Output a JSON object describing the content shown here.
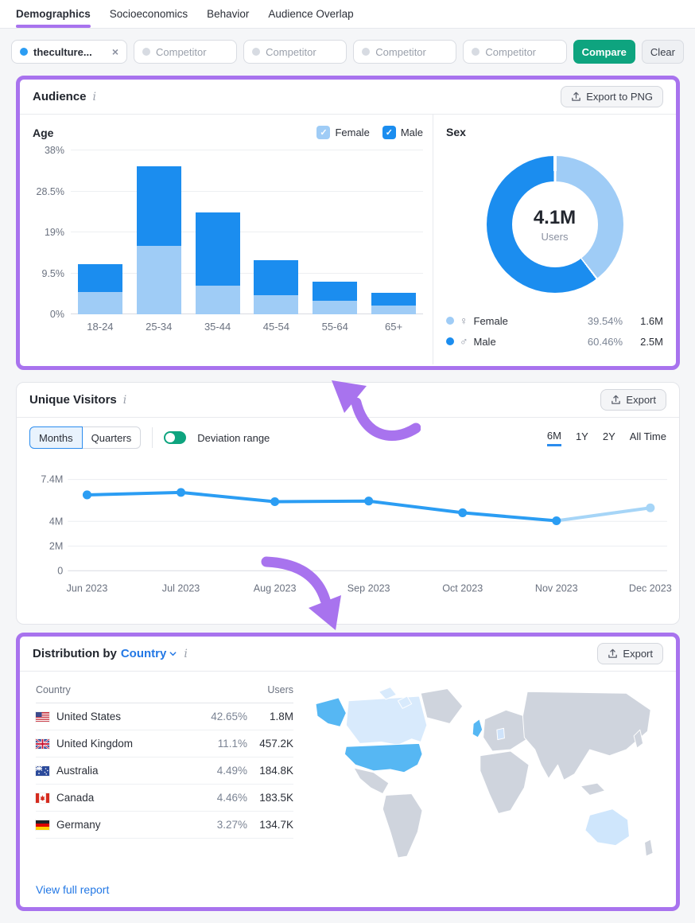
{
  "tabs": {
    "items": [
      {
        "label": "Demographics",
        "active": true
      },
      {
        "label": "Socioeconomics",
        "active": false
      },
      {
        "label": "Behavior",
        "active": false
      },
      {
        "label": "Audience Overlap",
        "active": false
      }
    ]
  },
  "filters": {
    "main_chip": {
      "label": "theculture...",
      "close_label": "×"
    },
    "competitor_placeholder": "Competitor",
    "compare_label": "Compare",
    "clear_label": "Clear"
  },
  "audience": {
    "title": "Audience",
    "info_icon_char": "i",
    "export_label": "Export to PNG"
  },
  "unique_visitors_section": {
    "title": "Unique Visitors",
    "info_icon_char": "i",
    "export_label": "Export",
    "granularity": [
      {
        "label": "Months",
        "active": true
      },
      {
        "label": "Quarters",
        "active": false
      }
    ],
    "toggle_label": "Deviation range",
    "toggle_on": true,
    "ranges": [
      {
        "label": "6M",
        "active": true
      },
      {
        "label": "1Y",
        "active": false
      },
      {
        "label": "2Y",
        "active": false
      },
      {
        "label": "All Time",
        "active": false
      }
    ]
  },
  "distribution": {
    "title_prefix": "Distribution by",
    "selector_label": "Country",
    "info_icon_char": "i",
    "export_label": "Export",
    "table": {
      "col_country": "Country",
      "col_users": "Users",
      "rows": [
        {
          "country": "United States",
          "flag": "us",
          "percent": "42.65%",
          "users": "1.8M"
        },
        {
          "country": "United Kingdom",
          "flag": "gb",
          "percent": "11.1%",
          "users": "457.2K"
        },
        {
          "country": "Australia",
          "flag": "au",
          "percent": "4.49%",
          "users": "184.8K"
        },
        {
          "country": "Canada",
          "flag": "ca",
          "percent": "4.46%",
          "users": "183.5K"
        },
        {
          "country": "Germany",
          "flag": "de",
          "percent": "3.27%",
          "users": "134.7K"
        }
      ]
    },
    "link_label": "View full report"
  },
  "colors": {
    "accent_purple": "#a873ee",
    "male_blue": "#1b8def",
    "female_blue": "#9fccf6",
    "compare_green": "#0ea47f",
    "link_blue": "#2378e5",
    "line_blue": "#2b9df3"
  },
  "chart_data": [
    {
      "id": "age",
      "type": "bar",
      "stacked": true,
      "title": "Age",
      "categories": [
        "18-24",
        "25-34",
        "35-44",
        "45-54",
        "55-64",
        "65+"
      ],
      "series": [
        {
          "name": "Female",
          "color": "#9fccf6",
          "values": [
            5.1,
            15.9,
            6.7,
            4.4,
            3.1,
            2.1
          ]
        },
        {
          "name": "Male",
          "color": "#1b8def",
          "values": [
            6.6,
            18.4,
            17.0,
            8.1,
            4.5,
            2.8
          ]
        }
      ],
      "ytick_labels": [
        "0%",
        "9.5%",
        "19%",
        "28.5%",
        "38%"
      ],
      "ylim": [
        0,
        38
      ],
      "grid": true,
      "legend_position": "top-right"
    },
    {
      "id": "sex",
      "type": "pie",
      "title": "Sex",
      "center_value": "4.1M",
      "center_label": "Users",
      "slices": [
        {
          "name": "Female",
          "symbol": "♀",
          "percent": 39.54,
          "percent_label": "39.54%",
          "users": "1.6M",
          "color": "#9fccf6"
        },
        {
          "name": "Male",
          "symbol": "♂",
          "percent": 60.46,
          "percent_label": "60.46%",
          "users": "2.5M",
          "color": "#1b8def"
        }
      ]
    },
    {
      "id": "unique_visitors",
      "type": "line",
      "x": [
        "Jun 2023",
        "Jul 2023",
        "Aug 2023",
        "Sep 2023",
        "Oct 2023",
        "Nov 2023",
        "Dec 2023"
      ],
      "values": [
        6.15,
        6.35,
        5.6,
        5.65,
        4.7,
        4.05,
        5.1
      ],
      "unit": "M",
      "estimated_from_index": 5,
      "ytick_labels": [
        "0",
        "2M",
        "4M",
        "7.4M"
      ],
      "ytick_values": [
        0,
        2,
        4,
        7.4
      ],
      "ylim": [
        0,
        7.4
      ],
      "line_color": "#2b9df3",
      "estimated_color": "#a6d5f7",
      "grid": true
    }
  ]
}
